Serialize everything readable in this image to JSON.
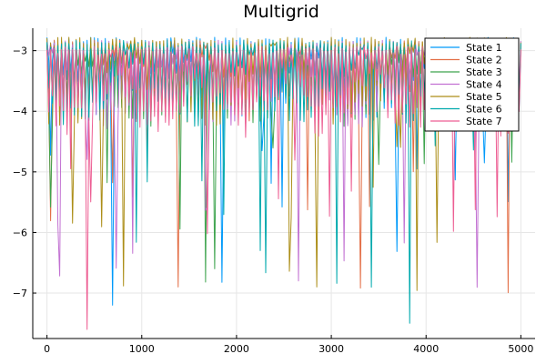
{
  "chart_data": {
    "type": "line",
    "title": "Multigrid",
    "xlabel": "",
    "ylabel": "",
    "xlim": [
      -150,
      5150
    ],
    "ylim": [
      -7.75,
      -2.63
    ],
    "xticks": [
      0,
      1000,
      2000,
      3000,
      4000,
      5000
    ],
    "yticks": [
      -7,
      -6,
      -5,
      -4,
      -3
    ],
    "ytick_labels": [
      "−7",
      "−6",
      "−5",
      "−4",
      "−3"
    ],
    "grid": true,
    "legend": "top-right",
    "series": [
      {
        "name": "State 1",
        "color": "#009AFA",
        "period": 1400,
        "phase": 0,
        "amp": 1.35,
        "base": -2.85,
        "minimum": -7.2,
        "minimum_x": 700
      },
      {
        "name": "State 2",
        "color": "#E36F47",
        "period": 1000,
        "phase": 300,
        "amp": 1.25,
        "base": -2.9,
        "minimum": -6.9,
        "minimum_x": 1380
      },
      {
        "name": "State 3",
        "color": "#3EA44E",
        "period": 1100,
        "phase": 650,
        "amp": 1.3,
        "base": -2.95,
        "minimum": -6.6,
        "minimum_x": 1760
      },
      {
        "name": "State 4",
        "color": "#C271D2",
        "period": 1300,
        "phase": 1300,
        "amp": 1.4,
        "base": -2.9,
        "minimum": -6.8,
        "minimum_x": 2650
      },
      {
        "name": "State 5",
        "color": "#AC8E18",
        "period": 1500,
        "phase": 2100,
        "amp": 1.45,
        "base": -2.85,
        "minimum": -6.9,
        "minimum_x": 2850
      },
      {
        "name": "State 6",
        "color": "#00A9AD",
        "period": 1200,
        "phase": 2700,
        "amp": 1.4,
        "base": -2.9,
        "minimum": -7.5,
        "minimum_x": 3820
      },
      {
        "name": "State 7",
        "color": "#ED5E93",
        "period": 900,
        "phase": 200,
        "amp": 1.5,
        "base": -3.0,
        "minimum": -7.6,
        "minimum_x": 420
      }
    ]
  }
}
